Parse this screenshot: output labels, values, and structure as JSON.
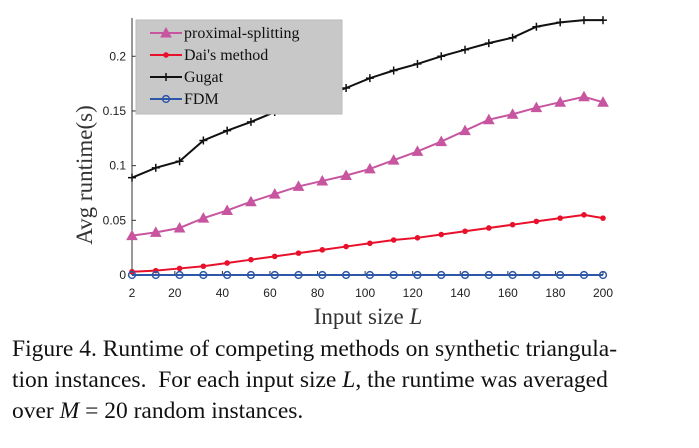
{
  "chart_data": {
    "type": "line",
    "xlabel_text": "Input size ",
    "xlabel_var": "L",
    "ylabel": "Avg runtime(s)",
    "xlim": [
      2,
      200
    ],
    "ylim": [
      0,
      0.235
    ],
    "xticks": [
      2,
      20,
      40,
      60,
      80,
      100,
      120,
      140,
      160,
      180,
      200
    ],
    "yticks": [
      0,
      0.05,
      0.1,
      0.15,
      0.2
    ],
    "ytick_labels": [
      "0",
      "0.05",
      "0.1",
      "0.15",
      "0.2"
    ],
    "legend_position": "top-left",
    "x": [
      2,
      12,
      22,
      32,
      42,
      52,
      62,
      72,
      82,
      92,
      102,
      112,
      122,
      132,
      142,
      152,
      162,
      172,
      182,
      192,
      200
    ],
    "series": [
      {
        "name": "proximal-splitting",
        "color": "#c7559f",
        "marker": "triangle",
        "values": [
          0.036,
          0.039,
          0.043,
          0.052,
          0.059,
          0.067,
          0.074,
          0.081,
          0.086,
          0.091,
          0.097,
          0.105,
          0.113,
          0.122,
          0.132,
          0.142,
          0.147,
          0.153,
          0.158,
          0.163,
          0.158
        ]
      },
      {
        "name": "Dai's method",
        "color": "#e8102a",
        "marker": "dot",
        "values": [
          0.003,
          0.004,
          0.006,
          0.008,
          0.011,
          0.014,
          0.017,
          0.02,
          0.023,
          0.026,
          0.029,
          0.032,
          0.034,
          0.037,
          0.04,
          0.043,
          0.046,
          0.049,
          0.052,
          0.055,
          0.052
        ]
      },
      {
        "name": "Gugat",
        "color": "#111111",
        "marker": "plus",
        "values": [
          0.089,
          0.098,
          0.104,
          0.123,
          0.132,
          0.14,
          0.149,
          0.156,
          0.163,
          0.171,
          0.18,
          0.187,
          0.193,
          0.2,
          0.206,
          0.212,
          0.217,
          0.227,
          0.231,
          0.233,
          0.233
        ]
      },
      {
        "name": "FDM",
        "color": "#2e57a8",
        "marker": "circle",
        "values": [
          0.0,
          0.0,
          0.0,
          0.0,
          0.0,
          0.0,
          0.0,
          0.0,
          0.0,
          0.0,
          0.0,
          0.0,
          0.0,
          0.0,
          0.0,
          0.0,
          0.0,
          0.0,
          0.0,
          0.0,
          0.0
        ]
      }
    ]
  },
  "caption": {
    "part1": "Figure 4. Runtime of competing methods on synthetic triangula-\ntion instances.  For each input size ",
    "var_L": "L",
    "part2": ", the runtime was averaged\nover ",
    "var_M": "M",
    "part3": " = 20 random instances."
  }
}
